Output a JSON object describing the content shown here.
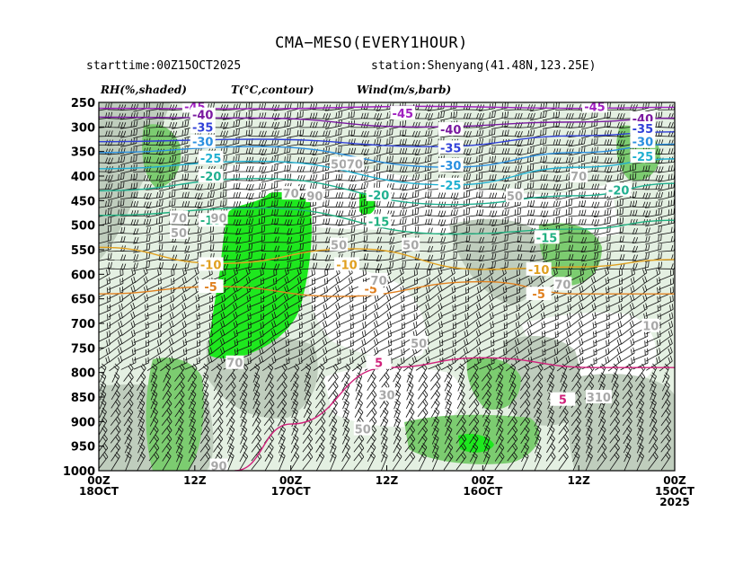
{
  "title": "CMA−MESO(EVERY1HOUR)",
  "starttime": "starttime:00Z15OCT2025",
  "station": "station:Shenyang(41.48N,123.25E)",
  "headers": {
    "rh": "RH(%,shaded)",
    "temp": "T(°C,contour)",
    "wind": "Wind(m/s,barb)"
  },
  "chart_data": {
    "type": "time-height cross-section",
    "y_axis": {
      "ticks": [
        "250",
        "300",
        "350",
        "400",
        "450",
        "500",
        "550",
        "600",
        "650",
        "700",
        "750",
        "800",
        "850",
        "900",
        "950",
        "1000"
      ],
      "values": [
        250,
        300,
        350,
        400,
        450,
        500,
        550,
        600,
        650,
        700,
        750,
        800,
        850,
        900,
        950,
        1000
      ],
      "range": [
        250,
        1000
      ]
    },
    "x_axis": {
      "hours_range": [
        0,
        72
      ],
      "ticks": [
        {
          "hour": 0,
          "line1": "00Z",
          "line2": "18OCT",
          "line3": ""
        },
        {
          "hour": 12,
          "line1": "12Z",
          "line2": "",
          "line3": ""
        },
        {
          "hour": 24,
          "line1": "00Z",
          "line2": "17OCT",
          "line3": ""
        },
        {
          "hour": 36,
          "line1": "12Z",
          "line2": "",
          "line3": ""
        },
        {
          "hour": 48,
          "line1": "00Z",
          "line2": "16OCT",
          "line3": ""
        },
        {
          "hour": 60,
          "line1": "12Z",
          "line2": "",
          "line3": ""
        },
        {
          "hour": 72,
          "line1": "00Z",
          "line2": "15OCT",
          "line3": "2025"
        }
      ]
    },
    "temperature_contours": [
      {
        "value": -45,
        "label": "-45",
        "color": "#a020c0",
        "points": [
          [
            0,
            262
          ],
          [
            20,
            263
          ],
          [
            40,
            258
          ],
          [
            60,
            262
          ],
          [
            72,
            260
          ]
        ],
        "labels_at": [
          [
            12,
            258
          ],
          [
            38,
            272
          ],
          [
            62,
            258
          ]
        ]
      },
      {
        "value": -40,
        "label": "-40",
        "color": "#7a1aa0",
        "points": [
          [
            0,
            280
          ],
          [
            20,
            282
          ],
          [
            40,
            300
          ],
          [
            60,
            290
          ],
          [
            72,
            282
          ]
        ],
        "labels_at": [
          [
            13,
            275
          ],
          [
            44,
            305
          ],
          [
            68,
            283
          ]
        ]
      },
      {
        "value": -35,
        "label": "-35",
        "color": "#3040d8",
        "points": [
          [
            0,
            330
          ],
          [
            20,
            325
          ],
          [
            42,
            340
          ],
          [
            60,
            318
          ],
          [
            72,
            310
          ]
        ],
        "labels_at": [
          [
            13,
            300
          ],
          [
            44,
            342
          ],
          [
            68,
            303
          ]
        ]
      },
      {
        "value": -30,
        "label": "-30",
        "color": "#2a90e0",
        "points": [
          [
            0,
            352
          ],
          [
            20,
            340
          ],
          [
            44,
            382
          ],
          [
            60,
            352
          ],
          [
            72,
            335
          ]
        ],
        "labels_at": [
          [
            13,
            330
          ],
          [
            44,
            378
          ],
          [
            68,
            330
          ]
        ]
      },
      {
        "value": -25,
        "label": "-25",
        "color": "#20b0d0",
        "points": [
          [
            0,
            385
          ],
          [
            20,
            370
          ],
          [
            44,
            418
          ],
          [
            60,
            382
          ],
          [
            72,
            365
          ]
        ],
        "labels_at": [
          [
            14,
            363
          ],
          [
            44,
            418
          ],
          [
            68,
            360
          ]
        ]
      },
      {
        "value": -20,
        "label": "-20",
        "color": "#20b090",
        "points": [
          [
            0,
            430
          ],
          [
            20,
            405
          ],
          [
            44,
            458
          ],
          [
            60,
            440
          ],
          [
            72,
            415
          ]
        ],
        "labels_at": [
          [
            14,
            400
          ],
          [
            35,
            438
          ],
          [
            65,
            428
          ]
        ]
      },
      {
        "value": -15,
        "label": "-15",
        "color": "#20b080",
        "points": [
          [
            0,
            480
          ],
          [
            20,
            465
          ],
          [
            44,
            518
          ],
          [
            60,
            508
          ],
          [
            72,
            490
          ]
        ],
        "labels_at": [
          [
            14,
            490
          ],
          [
            35,
            492
          ],
          [
            56,
            525
          ]
        ]
      },
      {
        "value": -10,
        "label": "-10",
        "color": "#e0a020",
        "points": [
          [
            0,
            545
          ],
          [
            15,
            578
          ],
          [
            32,
            548
          ],
          [
            48,
            590
          ],
          [
            60,
            585
          ],
          [
            72,
            570
          ]
        ],
        "labels_at": [
          [
            14,
            580
          ],
          [
            31,
            580
          ],
          [
            55,
            590
          ]
        ]
      },
      {
        "value": -5,
        "label": "-5",
        "color": "#e08020",
        "points": [
          [
            0,
            640
          ],
          [
            15,
            625
          ],
          [
            30,
            645
          ],
          [
            48,
            615
          ],
          [
            60,
            640
          ],
          [
            72,
            640
          ]
        ],
        "labels_at": [
          [
            14,
            625
          ],
          [
            34,
            630
          ],
          [
            55,
            640
          ]
        ]
      },
      {
        "value": 5,
        "label": "5",
        "color": "#d0207a",
        "points": [
          [
            17,
            1000
          ],
          [
            24,
            905
          ],
          [
            36,
            790
          ],
          [
            48,
            770
          ],
          [
            62,
            790
          ],
          [
            72,
            790
          ]
        ],
        "labels_at": [
          [
            35,
            780
          ],
          [
            58,
            855
          ]
        ]
      }
    ],
    "rh_labels": [
      {
        "value": 70,
        "hour": 10,
        "p": 485
      },
      {
        "value": 90,
        "hour": 15,
        "p": 485
      },
      {
        "value": 50,
        "hour": 10,
        "p": 515
      },
      {
        "value": 70,
        "hour": 24,
        "p": 435
      },
      {
        "value": 90,
        "hour": 27,
        "p": 440
      },
      {
        "value": 50,
        "hour": 30,
        "p": 375
      },
      {
        "value": 70,
        "hour": 32,
        "p": 375
      },
      {
        "value": 50,
        "hour": 30,
        "p": 540
      },
      {
        "value": 50,
        "hour": 39,
        "p": 540
      },
      {
        "value": 70,
        "hour": 35,
        "p": 612
      },
      {
        "value": 50,
        "hour": 40,
        "p": 740
      },
      {
        "value": 30,
        "hour": 36,
        "p": 845
      },
      {
        "value": 50,
        "hour": 33,
        "p": 915
      },
      {
        "value": 70,
        "hour": 17,
        "p": 780
      },
      {
        "value": 50,
        "hour": 52,
        "p": 440
      },
      {
        "value": 70,
        "hour": 60,
        "p": 400
      },
      {
        "value": 70,
        "hour": 58,
        "p": 620
      },
      {
        "value": 10,
        "hour": 69,
        "p": 705
      },
      {
        "value": 30,
        "hour": 62,
        "p": 850
      },
      {
        "value": 10,
        "hour": 63,
        "p": 850
      },
      {
        "value": 90,
        "hour": 15,
        "p": 990
      }
    ]
  }
}
